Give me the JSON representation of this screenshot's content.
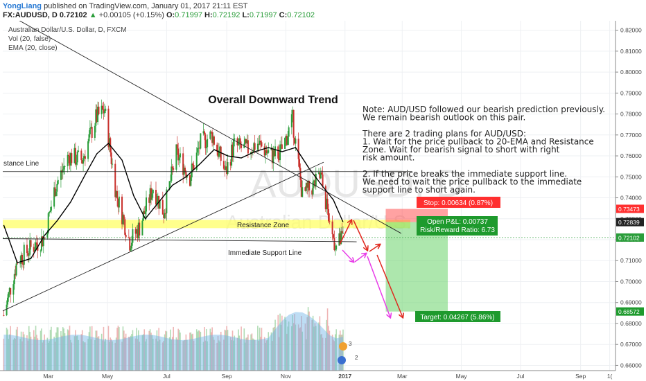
{
  "header": {
    "author": "YongLiang",
    "published": "published on TradingView.com, January 01, 2017 21:11 EST",
    "symbol": "FX:AUDUSD, D",
    "last": "0.72102",
    "change_arrow": "▲",
    "change": "+0.00105 (+0.15%)",
    "o_label": "O:",
    "o_value": "0.71997",
    "h_label": "H:",
    "h_value": "0.72192",
    "l_label": "L:",
    "l_value": "0.71997",
    "c_label": "C:",
    "c_value": "0.72102"
  },
  "legend": {
    "pair": "Australian Dollar/U.S. Dollar, D, FXCM",
    "vol": "Vol (20, false)",
    "ema": "EMA (20, close)"
  },
  "watermark": {
    "symbol": "AUDUSD, D",
    "name": "Australian Dollar/U.S."
  },
  "annotations": {
    "trend_title": "Overall Downward Trend",
    "note_lines": [
      "Note: AUD/USD followed our bearish prediction previously.",
      "We remain bearish outlook on this pair.",
      "",
      "There are 2 trading plans for AUD/USD:",
      "1. Wait for the price pullback to 20-EMA and Resistance",
      "Zone. Wait for bearish signal to short with right",
      "risk amount.",
      "",
      "2. If the price breaks the immediate support line.",
      "We need to wait the price pullback to the immediate",
      "support line to short again."
    ],
    "resistance_line": "stance Line",
    "resistance_zone": "Resistance Zone",
    "support_line": "Immediate Support Line",
    "stop_label": "Stop: 0.00634 (0.87%)",
    "open_pl": "Open P&L: 0.00737",
    "risk_reward": "Risk/Reward Ratio: 6.73",
    "target_label": "Target: 0.04267 (5.86%)",
    "event_markers": [
      "3",
      "2"
    ]
  },
  "price_tags": {
    "stop": "0.73473",
    "ema": "0.72839",
    "last": "0.72102",
    "target": "0.68572"
  },
  "colors": {
    "bull": "#2a9d3a",
    "bear": "#c9302c",
    "ema": "#000000",
    "resistance_zone": "#ffff66",
    "stop_zone": "#ff5555",
    "target_zone": "#6ad46a",
    "volume": "#6fb3e6",
    "arrow_red": "#e0281e",
    "arrow_magenta": "#e83ee8"
  },
  "chart_data": {
    "type": "candlestick",
    "x_axis": {
      "ticks": [
        "Mar",
        "May",
        "Jul",
        "Sep",
        "Nov",
        "2017",
        "Mar",
        "May",
        "Jul",
        "Sep",
        "1("
      ],
      "tick_dates": [
        "2016-03-01",
        "2016-05-01",
        "2016-07-01",
        "2016-09-01",
        "2016-11-01",
        "2017-01-01",
        "2017-03-01",
        "2017-05-01",
        "2017-07-01",
        "2017-09-01",
        "2017-10-01"
      ],
      "range": [
        "2016-01-14",
        "2017-10-07"
      ]
    },
    "y_axis": {
      "ticks": [
        "0.82000",
        "0.81000",
        "0.80000",
        "0.79000",
        "0.78000",
        "0.77000",
        "0.76000",
        "0.75000",
        "0.74000",
        "0.73000",
        "0.72000",
        "0.71000",
        "0.70000",
        "0.69000",
        "0.68000",
        "0.67000",
        "0.66000"
      ],
      "range": [
        0.6575,
        0.8245
      ],
      "position": "right"
    },
    "close_path": [
      [
        "2016-01-15",
        0.684
      ],
      [
        "2016-01-29",
        0.71
      ],
      [
        "2016-02-12",
        0.716
      ],
      [
        "2016-02-26",
        0.721
      ],
      [
        "2016-03-08",
        0.745
      ],
      [
        "2016-03-22",
        0.76
      ],
      [
        "2016-04-05",
        0.758
      ],
      [
        "2016-04-19",
        0.778
      ],
      [
        "2016-04-28",
        0.782
      ],
      [
        "2016-05-10",
        0.742
      ],
      [
        "2016-05-24",
        0.719
      ],
      [
        "2016-06-03",
        0.726
      ],
      [
        "2016-06-17",
        0.745
      ],
      [
        "2016-06-28",
        0.733
      ],
      [
        "2016-07-11",
        0.761
      ],
      [
        "2016-07-25",
        0.75
      ],
      [
        "2016-08-05",
        0.766
      ],
      [
        "2016-08-17",
        0.77
      ],
      [
        "2016-08-31",
        0.752
      ],
      [
        "2016-09-08",
        0.765
      ],
      [
        "2016-09-22",
        0.763
      ],
      [
        "2016-10-03",
        0.766
      ],
      [
        "2016-10-17",
        0.76
      ],
      [
        "2016-10-27",
        0.762
      ],
      [
        "2016-11-08",
        0.777
      ],
      [
        "2016-11-18",
        0.741
      ],
      [
        "2016-11-30",
        0.746
      ],
      [
        "2016-12-07",
        0.75
      ],
      [
        "2016-12-19",
        0.722
      ],
      [
        "2016-12-23",
        0.717
      ],
      [
        "2016-12-30",
        0.721
      ]
    ],
    "ema20_path": [
      [
        "2016-01-15",
        0.727
      ],
      [
        "2016-01-29",
        0.709
      ],
      [
        "2016-02-12",
        0.711
      ],
      [
        "2016-02-26",
        0.722
      ],
      [
        "2016-03-10",
        0.729
      ],
      [
        "2016-03-24",
        0.738
      ],
      [
        "2016-04-08",
        0.751
      ],
      [
        "2016-04-20",
        0.761
      ],
      [
        "2016-05-02",
        0.766
      ],
      [
        "2016-05-16",
        0.758
      ],
      [
        "2016-05-28",
        0.741
      ],
      [
        "2016-06-09",
        0.73
      ],
      [
        "2016-06-23",
        0.738
      ],
      [
        "2016-07-07",
        0.746
      ],
      [
        "2016-07-21",
        0.75
      ],
      [
        "2016-08-04",
        0.756
      ],
      [
        "2016-08-19",
        0.763
      ],
      [
        "2016-09-02",
        0.76
      ],
      [
        "2016-09-16",
        0.759
      ],
      [
        "2016-09-30",
        0.762
      ],
      [
        "2016-10-14",
        0.764
      ],
      [
        "2016-10-28",
        0.762
      ],
      [
        "2016-11-11",
        0.764
      ],
      [
        "2016-11-25",
        0.754
      ],
      [
        "2016-12-08",
        0.746
      ],
      [
        "2016-12-20",
        0.739
      ],
      [
        "2016-12-30",
        0.7284
      ]
    ],
    "lines": {
      "downtrend": [
        [
          "2016-01-14",
          0.829
        ],
        [
          "2017-02-28",
          0.723
        ]
      ],
      "uptrend": [
        [
          "2016-01-14",
          0.686
        ],
        [
          "2016-12-10",
          0.757
        ]
      ],
      "resistance_line": 0.7525,
      "support_line": [
        [
          "2016-01-14",
          0.7205
        ],
        [
          "2017-01-13",
          0.719
        ]
      ],
      "resistance_zone": [
        0.7265,
        0.7285
      ]
    },
    "position": {
      "entry": 0.7284,
      "stop": 0.7347,
      "target": 0.6857,
      "start": "2017-02-12",
      "end": "2017-04-17"
    }
  }
}
